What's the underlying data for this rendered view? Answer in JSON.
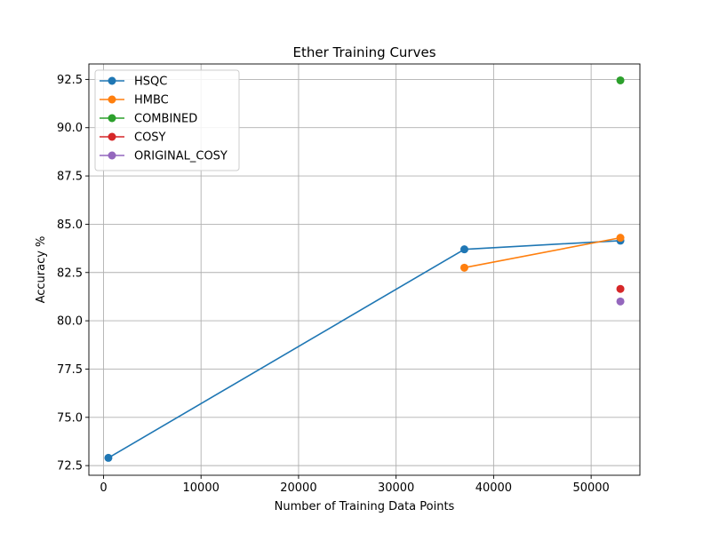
{
  "chart_data": {
    "type": "line",
    "title": "Ether Training Curves",
    "xlabel": "Number of Training Data Points",
    "ylabel": "Accuracy %",
    "xlim": [
      -1500,
      55000
    ],
    "ylim": [
      72.0,
      93.3
    ],
    "xticks": [
      0,
      10000,
      20000,
      30000,
      40000,
      50000
    ],
    "xtick_labels": [
      "0",
      "10000",
      "20000",
      "30000",
      "40000",
      "50000"
    ],
    "yticks": [
      72.5,
      75.0,
      77.5,
      80.0,
      82.5,
      85.0,
      87.5,
      90.0,
      92.5
    ],
    "ytick_labels": [
      "72.5",
      "75.0",
      "77.5",
      "80.0",
      "82.5",
      "85.0",
      "87.5",
      "90.0",
      "92.5"
    ],
    "grid": true,
    "legend_position": "upper-left",
    "series": [
      {
        "name": "HSQC",
        "color": "#1f77b4",
        "x": [
          500,
          37000,
          53000
        ],
        "y": [
          72.9,
          83.7,
          84.15
        ]
      },
      {
        "name": "HMBC",
        "color": "#ff7f0e",
        "x": [
          37000,
          53000
        ],
        "y": [
          82.75,
          84.3
        ]
      },
      {
        "name": "COMBINED",
        "color": "#2ca02c",
        "x": [
          53000
        ],
        "y": [
          92.45
        ]
      },
      {
        "name": "COSY",
        "color": "#d62728",
        "x": [
          53000
        ],
        "y": [
          81.65
        ]
      },
      {
        "name": "ORIGINAL_COSY",
        "color": "#9467bd",
        "x": [
          53000
        ],
        "y": [
          81.0
        ]
      }
    ]
  }
}
